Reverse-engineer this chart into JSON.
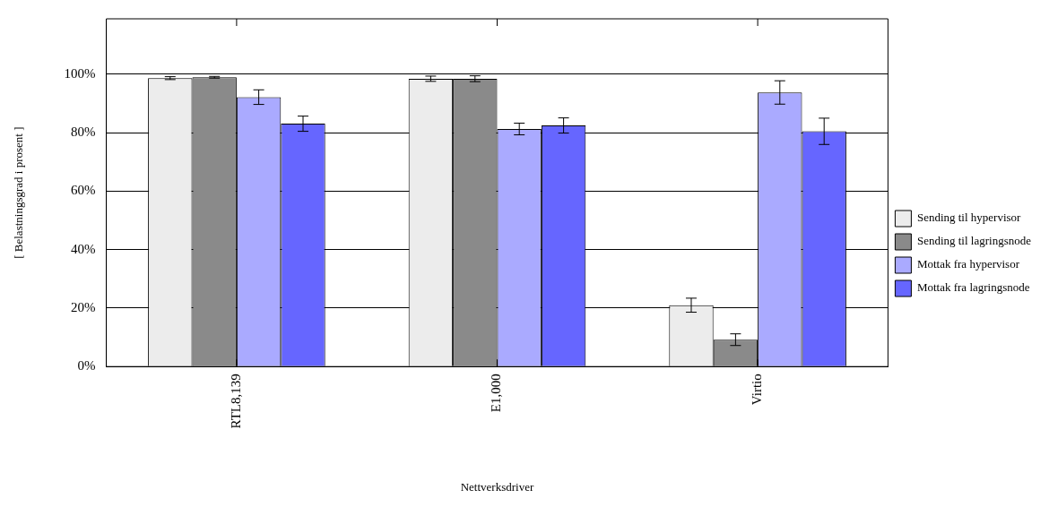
{
  "chart_data": {
    "type": "bar",
    "xlabel": "Nettverksdriver",
    "ylabel": "[ Belastningsgrad i prosent ]",
    "categories": [
      "RTL8,139",
      "E1,000",
      "Virtio"
    ],
    "series": [
      {
        "name": "Sending til hypervisor",
        "color": "#ececec",
        "values": [
          98.7,
          98.5,
          21.0
        ],
        "errors": [
          0.5,
          0.9,
          2.4
        ]
      },
      {
        "name": "Sending til lagringsnode",
        "color": "#8a8a8a",
        "values": [
          99.0,
          98.5,
          9.2
        ],
        "errors": [
          0.3,
          1.0,
          2.0
        ]
      },
      {
        "name": "Mottak fra hypervisor",
        "color": "#aaaaff",
        "values": [
          92.2,
          81.3,
          93.8
        ],
        "errors": [
          2.5,
          2.0,
          4.0
        ]
      },
      {
        "name": "Mottak fra lagringsnode",
        "color": "#6666ff",
        "values": [
          83.1,
          82.5,
          80.5
        ],
        "errors": [
          2.6,
          2.6,
          4.5
        ]
      }
    ],
    "ylim": [
      0,
      119
    ],
    "yticks": [
      {
        "value": 0,
        "label": "0%"
      },
      {
        "value": 20,
        "label": "20%"
      },
      {
        "value": 40,
        "label": "40%"
      },
      {
        "value": 60,
        "label": "60%"
      },
      {
        "value": 80,
        "label": "80%"
      },
      {
        "value": 100,
        "label": "100%"
      }
    ],
    "grid": "y",
    "legend": "right"
  }
}
